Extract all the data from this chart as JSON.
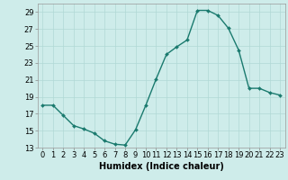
{
  "x": [
    0,
    1,
    2,
    3,
    4,
    5,
    6,
    7,
    8,
    9,
    10,
    11,
    12,
    13,
    14,
    15,
    16,
    17,
    18,
    19,
    20,
    21,
    22,
    23
  ],
  "y": [
    18.0,
    18.0,
    16.8,
    15.6,
    15.2,
    14.7,
    13.8,
    13.4,
    13.3,
    15.1,
    18.0,
    21.1,
    24.0,
    24.9,
    25.7,
    29.2,
    29.2,
    28.6,
    27.1,
    24.5,
    20.0,
    20.0,
    19.5,
    19.2
  ],
  "line_color": "#1a7a6e",
  "marker": "D",
  "marker_size": 2.0,
  "background_color": "#ceecea",
  "grid_color": "#b0d8d5",
  "xlabel": "Humidex (Indice chaleur)",
  "xlabel_fontsize": 7,
  "xlabel_bold": true,
  "xlim": [
    -0.5,
    23.5
  ],
  "ylim": [
    13,
    30
  ],
  "yticks": [
    13,
    15,
    17,
    19,
    21,
    23,
    25,
    27,
    29
  ],
  "xticks": [
    0,
    1,
    2,
    3,
    4,
    5,
    6,
    7,
    8,
    9,
    10,
    11,
    12,
    13,
    14,
    15,
    16,
    17,
    18,
    19,
    20,
    21,
    22,
    23
  ],
  "tick_fontsize": 6.0,
  "line_width": 1.0
}
